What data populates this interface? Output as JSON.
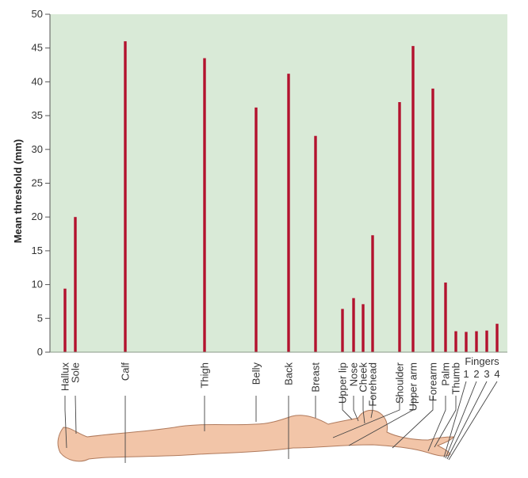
{
  "chart_data": {
    "type": "bar",
    "ylabel": "Mean threshold (mm)",
    "ylim": [
      0,
      50
    ],
    "yticks": [
      0,
      5,
      10,
      15,
      20,
      25,
      30,
      35,
      40,
      45,
      50
    ],
    "grid": false,
    "categories": [
      "Hallux",
      "Sole",
      "Calf",
      "Thigh",
      "Belly",
      "Back",
      "Breast",
      "Upper lip",
      "Nose",
      "Cheek",
      "Forehead",
      "Shoulder",
      "Upper arm",
      "Forearm",
      "Palm",
      "Thumb",
      "1",
      "2",
      "3",
      "4"
    ],
    "values": [
      9.4,
      20,
      46,
      43.5,
      36.2,
      41.2,
      32,
      6.4,
      8,
      7.1,
      17.3,
      37,
      45.3,
      39,
      10.3,
      3.1,
      3,
      3.1,
      3.2,
      4.2
    ],
    "group_label": "Fingers",
    "colors": {
      "plot_bg": "#d9ead7",
      "bar": "#b3122e",
      "skin": "#f2c5a8",
      "skin_outline": "#b07a5c"
    }
  }
}
